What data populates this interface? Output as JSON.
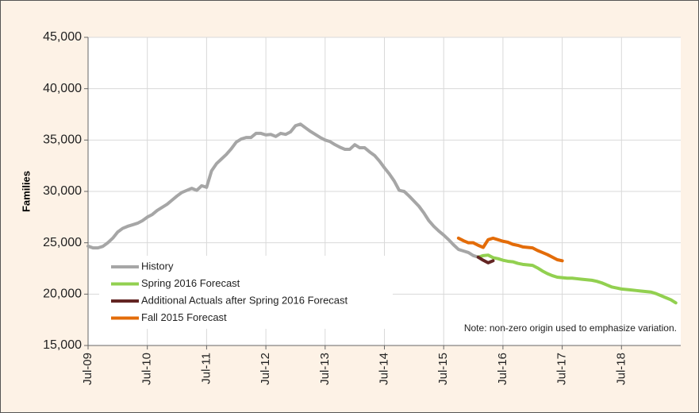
{
  "chart_data": {
    "type": "line",
    "y_label": "Families",
    "note": "Note: non-zero origin used to emphasize variation.",
    "categories": [
      "Jul-09",
      null,
      null,
      null,
      null,
      null,
      null,
      null,
      null,
      null,
      null,
      null,
      "Jul-10",
      null,
      null,
      null,
      null,
      null,
      null,
      null,
      null,
      null,
      null,
      null,
      "Jul-11",
      null,
      null,
      null,
      null,
      null,
      null,
      null,
      null,
      null,
      null,
      null,
      "Jul-12",
      null,
      null,
      null,
      null,
      null,
      null,
      null,
      null,
      null,
      null,
      null,
      "Jul-13",
      null,
      null,
      null,
      null,
      null,
      null,
      null,
      null,
      null,
      null,
      null,
      "Jul-14",
      null,
      null,
      null,
      null,
      null,
      null,
      null,
      null,
      null,
      null,
      null,
      "Jul-15",
      null,
      null,
      null,
      null,
      null,
      null,
      null,
      null,
      null,
      null,
      null,
      "Jul-16",
      null,
      null,
      null,
      null,
      null,
      null,
      null,
      null,
      null,
      null,
      null,
      "Jul-17",
      null,
      null,
      null,
      null,
      null,
      null,
      null,
      null,
      null,
      null,
      null,
      "Jul-18",
      null,
      null,
      null,
      null,
      null,
      null,
      null,
      null,
      null,
      null,
      null
    ],
    "series": [
      {
        "name": "History",
        "color": "#a6a6a6",
        "values": [
          24670,
          24500,
          24500,
          24650,
          25000,
          25450,
          26050,
          26400,
          26600,
          26750,
          26900,
          27150,
          27500,
          27750,
          28150,
          28450,
          28750,
          29150,
          29550,
          29900,
          30100,
          30300,
          30100,
          30550,
          30400,
          32000,
          32700,
          33150,
          33600,
          34150,
          34800,
          35100,
          35250,
          35250,
          35650,
          35650,
          35500,
          35550,
          35350,
          35650,
          35550,
          35800,
          36400,
          36550,
          36200,
          35850,
          35550,
          35250,
          35000,
          34850,
          34550,
          34300,
          34100,
          34100,
          34550,
          34250,
          34250,
          33850,
          33500,
          32950,
          32300,
          31700,
          31000,
          30100,
          30000,
          29550,
          29050,
          28550,
          27900,
          27150,
          26600,
          26150,
          25750,
          25300,
          24800,
          24350,
          24200,
          24050,
          23750,
          23600,
          null,
          null,
          null,
          null,
          null,
          null,
          null,
          null,
          null,
          null,
          null,
          null,
          null,
          null,
          null,
          null,
          null,
          null,
          null,
          null,
          null,
          null,
          null,
          null,
          null,
          null,
          null,
          null,
          null,
          null,
          null,
          null,
          null,
          null,
          null,
          null,
          null,
          null,
          null,
          null
        ]
      },
      {
        "name": "Spring 2016 Forecast",
        "color": "#92d050",
        "values": [
          null,
          null,
          null,
          null,
          null,
          null,
          null,
          null,
          null,
          null,
          null,
          null,
          null,
          null,
          null,
          null,
          null,
          null,
          null,
          null,
          null,
          null,
          null,
          null,
          null,
          null,
          null,
          null,
          null,
          null,
          null,
          null,
          null,
          null,
          null,
          null,
          null,
          null,
          null,
          null,
          null,
          null,
          null,
          null,
          null,
          null,
          null,
          null,
          null,
          null,
          null,
          null,
          null,
          null,
          null,
          null,
          null,
          null,
          null,
          null,
          null,
          null,
          null,
          null,
          null,
          null,
          null,
          null,
          null,
          null,
          null,
          null,
          null,
          null,
          null,
          null,
          null,
          null,
          null,
          23600,
          23750,
          23800,
          23550,
          23450,
          23300,
          23200,
          23150,
          23000,
          22900,
          22850,
          22800,
          22550,
          22250,
          22000,
          21800,
          21650,
          21600,
          21550,
          21550,
          21500,
          21450,
          21400,
          21350,
          21250,
          21100,
          20900,
          20700,
          20600,
          20500,
          20450,
          20400,
          20350,
          20300,
          20250,
          20200,
          20050,
          19850,
          19650,
          19450,
          19150
        ]
      },
      {
        "name": "Additional Actuals after Spring 2016 Forecast",
        "color": "#632523",
        "values": [
          null,
          null,
          null,
          null,
          null,
          null,
          null,
          null,
          null,
          null,
          null,
          null,
          null,
          null,
          null,
          null,
          null,
          null,
          null,
          null,
          null,
          null,
          null,
          null,
          null,
          null,
          null,
          null,
          null,
          null,
          null,
          null,
          null,
          null,
          null,
          null,
          null,
          null,
          null,
          null,
          null,
          null,
          null,
          null,
          null,
          null,
          null,
          null,
          null,
          null,
          null,
          null,
          null,
          null,
          null,
          null,
          null,
          null,
          null,
          null,
          null,
          null,
          null,
          null,
          null,
          null,
          null,
          null,
          null,
          null,
          null,
          null,
          null,
          null,
          null,
          null,
          null,
          null,
          null,
          23600,
          23300,
          23050,
          23250,
          null,
          null,
          null,
          null,
          null,
          null,
          null,
          null,
          null,
          null,
          null,
          null,
          null,
          null,
          null,
          null,
          null,
          null,
          null,
          null,
          null,
          null,
          null,
          null,
          null,
          null,
          null,
          null,
          null,
          null,
          null,
          null,
          null,
          null,
          null,
          null,
          null
        ]
      },
      {
        "name": "Fall 2015 Forecast",
        "color": "#e36c09",
        "values": [
          null,
          null,
          null,
          null,
          null,
          null,
          null,
          null,
          null,
          null,
          null,
          null,
          null,
          null,
          null,
          null,
          null,
          null,
          null,
          null,
          null,
          null,
          null,
          null,
          null,
          null,
          null,
          null,
          null,
          null,
          null,
          null,
          null,
          null,
          null,
          null,
          null,
          null,
          null,
          null,
          null,
          null,
          null,
          null,
          null,
          null,
          null,
          null,
          null,
          null,
          null,
          null,
          null,
          null,
          null,
          null,
          null,
          null,
          null,
          null,
          null,
          null,
          null,
          null,
          null,
          null,
          null,
          null,
          null,
          null,
          null,
          null,
          null,
          null,
          null,
          25450,
          25200,
          25000,
          25000,
          24750,
          24550,
          25300,
          25450,
          25300,
          25150,
          25050,
          24850,
          24750,
          24600,
          24550,
          24500,
          24250,
          24050,
          23850,
          23600,
          23350,
          23250,
          null,
          null,
          null,
          null,
          null,
          null,
          null,
          null,
          null,
          null,
          null,
          null,
          null,
          null,
          null,
          null,
          null,
          null,
          null,
          null,
          null,
          null,
          null
        ]
      }
    ],
    "ylim": [
      15000,
      45000
    ],
    "yticks": [
      {
        "value": 15000,
        "label": "15,000"
      },
      {
        "value": 20000,
        "label": "20,000"
      },
      {
        "value": 25000,
        "label": "25,000"
      },
      {
        "value": 30000,
        "label": "30,000"
      },
      {
        "value": 35000,
        "label": "35,000"
      },
      {
        "value": 40000,
        "label": "40,000"
      },
      {
        "value": 45000,
        "label": "45,000"
      }
    ],
    "grid": true,
    "legend": "lower left"
  }
}
